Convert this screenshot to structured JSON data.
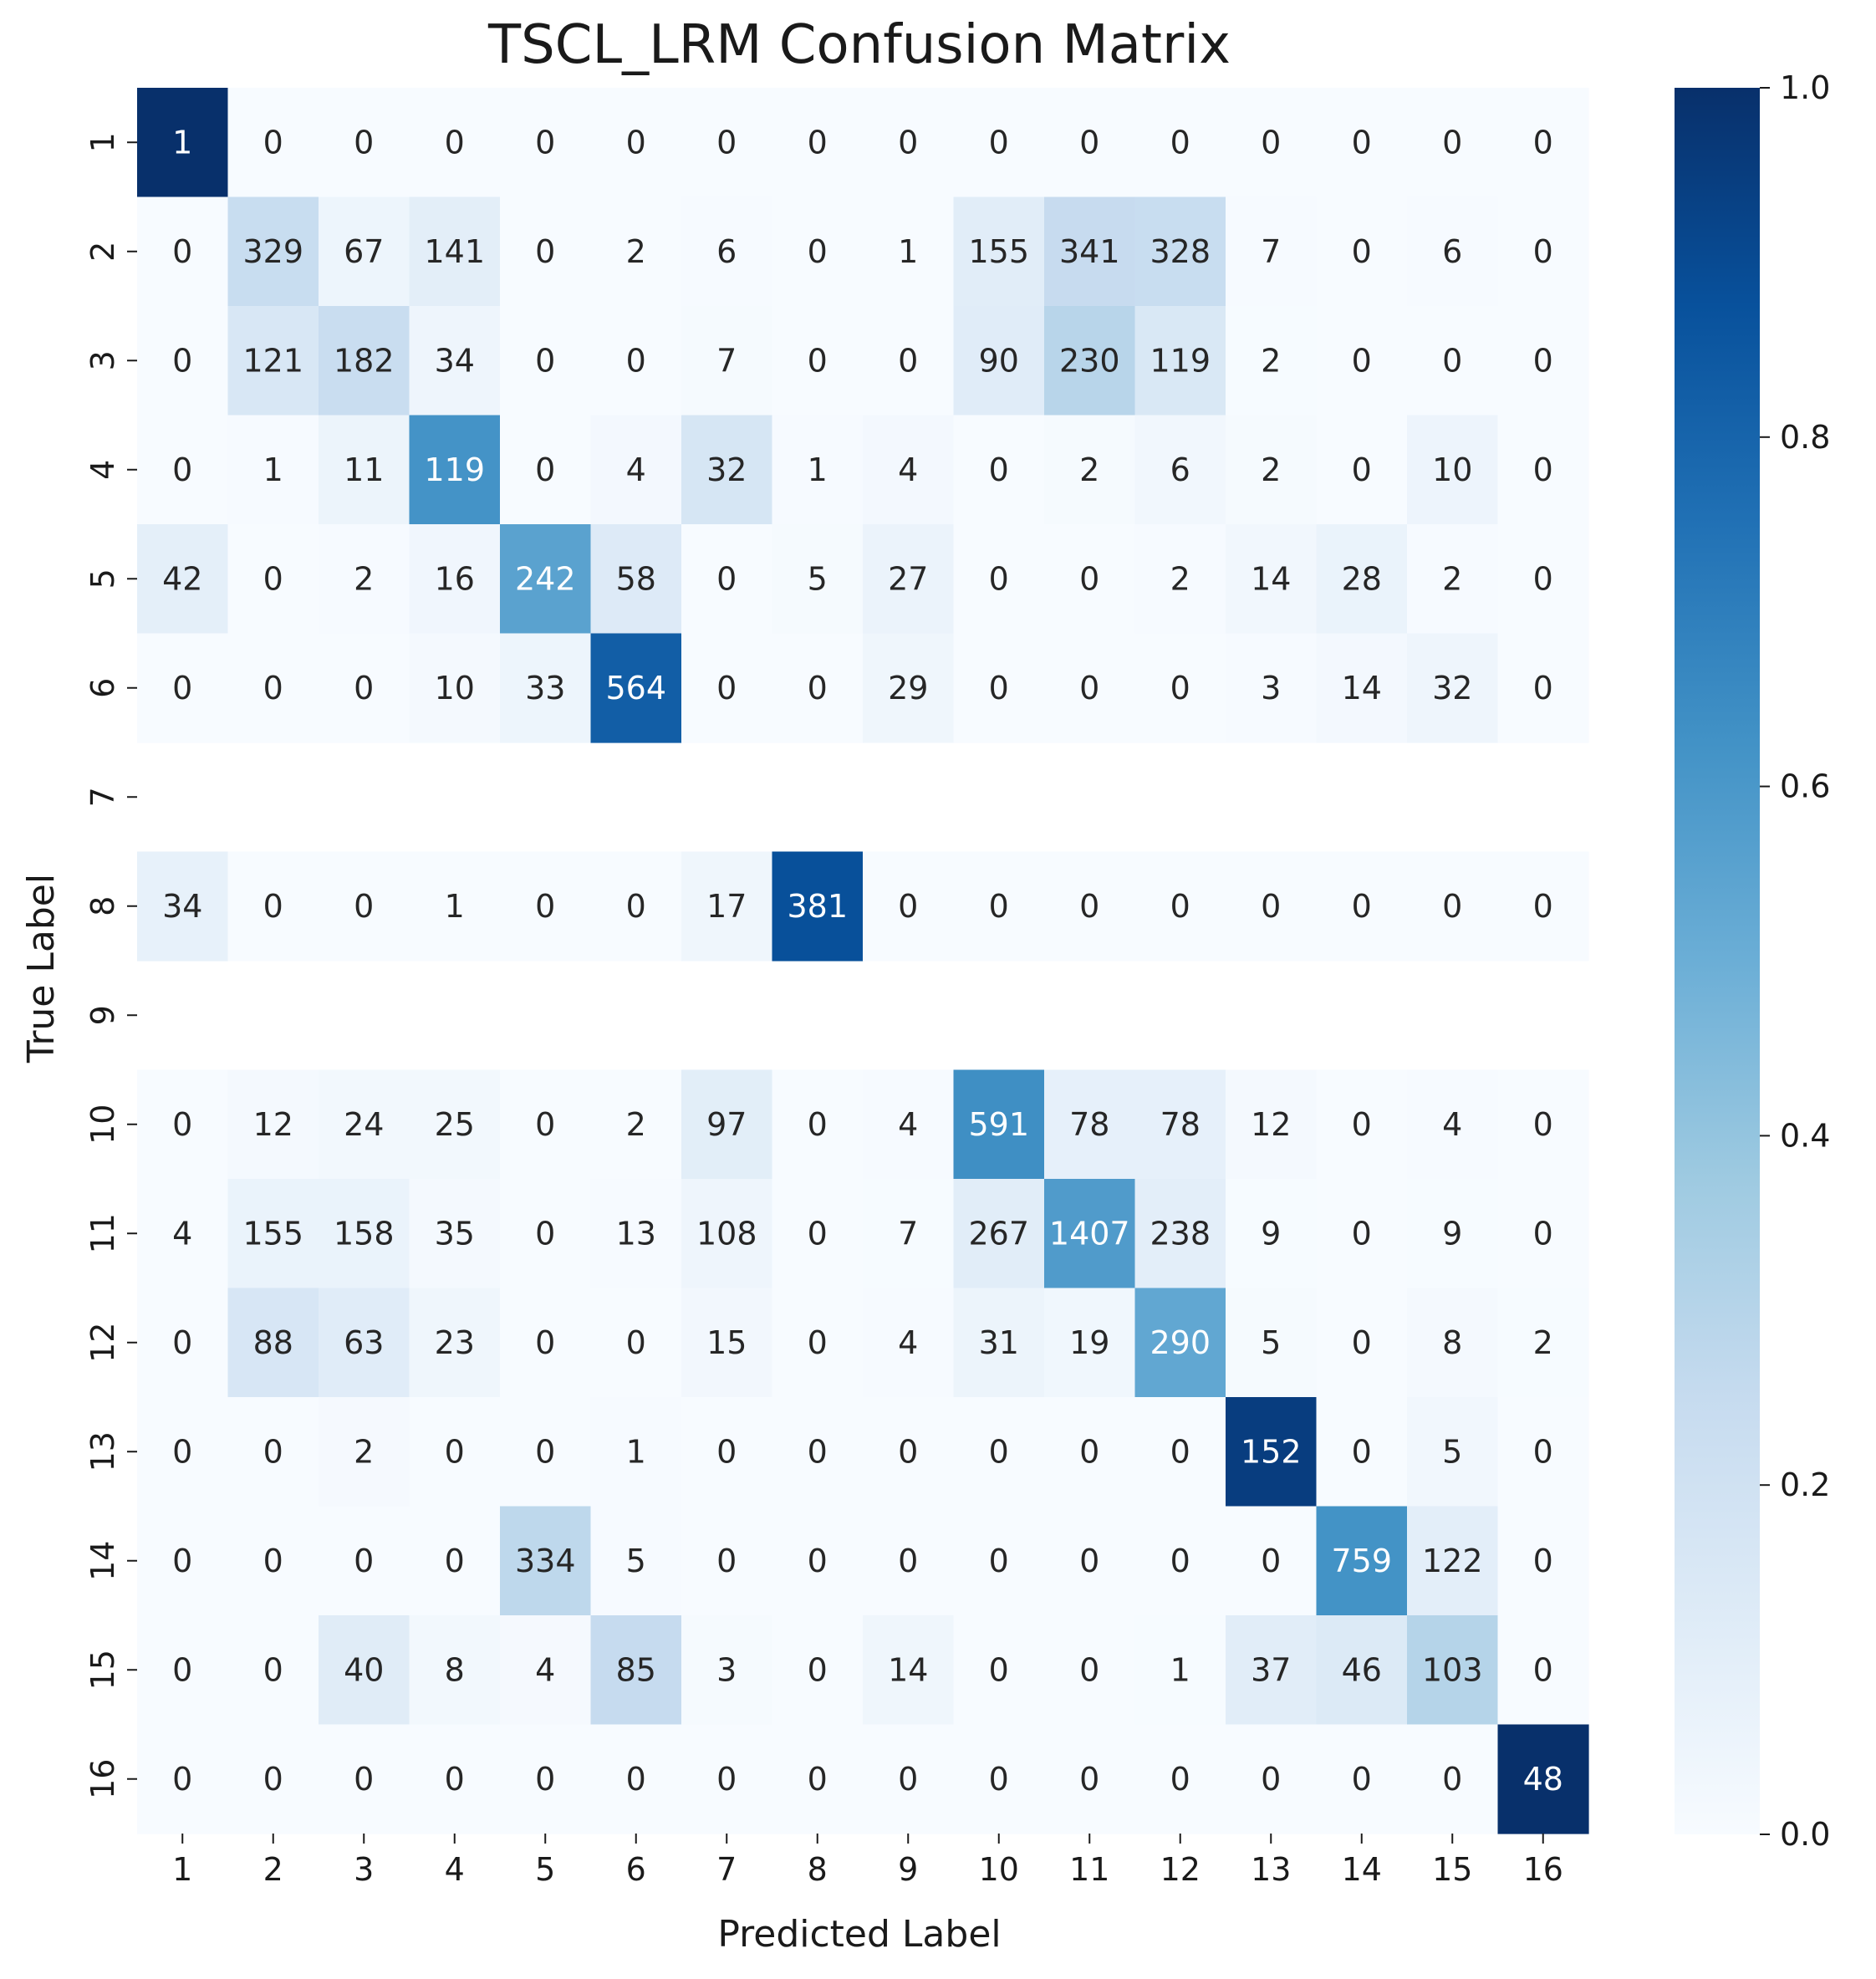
{
  "chart_data": {
    "type": "heatmap",
    "title": "TSCL_LRM Confusion Matrix",
    "xlabel": "Predicted Label",
    "ylabel": "True Label",
    "x_categories": [
      "1",
      "2",
      "3",
      "4",
      "5",
      "6",
      "7",
      "8",
      "9",
      "10",
      "11",
      "12",
      "13",
      "14",
      "15",
      "16"
    ],
    "y_categories": [
      "1",
      "2",
      "3",
      "4",
      "5",
      "6",
      "7",
      "8",
      "9",
      "10",
      "11",
      "12",
      "13",
      "14",
      "15",
      "16"
    ],
    "values": [
      [
        1,
        0,
        0,
        0,
        0,
        0,
        0,
        0,
        0,
        0,
        0,
        0,
        0,
        0,
        0,
        0
      ],
      [
        0,
        329,
        67,
        141,
        0,
        2,
        6,
        0,
        1,
        155,
        341,
        328,
        7,
        0,
        6,
        0
      ],
      [
        0,
        121,
        182,
        34,
        0,
        0,
        7,
        0,
        0,
        90,
        230,
        119,
        2,
        0,
        0,
        0
      ],
      [
        0,
        1,
        11,
        119,
        0,
        4,
        32,
        1,
        4,
        0,
        2,
        6,
        2,
        0,
        10,
        0
      ],
      [
        42,
        0,
        2,
        16,
        242,
        58,
        0,
        5,
        27,
        0,
        0,
        2,
        14,
        28,
        2,
        0
      ],
      [
        0,
        0,
        0,
        10,
        33,
        564,
        0,
        0,
        29,
        0,
        0,
        0,
        3,
        14,
        32,
        0
      ],
      null,
      [
        34,
        0,
        0,
        1,
        0,
        0,
        17,
        381,
        0,
        0,
        0,
        0,
        0,
        0,
        0,
        0
      ],
      null,
      [
        0,
        12,
        24,
        25,
        0,
        2,
        97,
        0,
        4,
        591,
        78,
        78,
        12,
        0,
        4,
        0
      ],
      [
        4,
        155,
        158,
        35,
        0,
        13,
        108,
        0,
        7,
        267,
        1407,
        238,
        9,
        0,
        9,
        0
      ],
      [
        0,
        88,
        63,
        23,
        0,
        0,
        15,
        0,
        4,
        31,
        19,
        290,
        5,
        0,
        8,
        2
      ],
      [
        0,
        0,
        2,
        0,
        0,
        1,
        0,
        0,
        0,
        0,
        0,
        0,
        152,
        0,
        5,
        0
      ],
      [
        0,
        0,
        0,
        0,
        334,
        5,
        0,
        0,
        0,
        0,
        0,
        0,
        0,
        759,
        122,
        0
      ],
      [
        0,
        0,
        40,
        8,
        4,
        85,
        3,
        0,
        14,
        0,
        0,
        1,
        37,
        46,
        103,
        0
      ],
      [
        0,
        0,
        0,
        0,
        0,
        0,
        0,
        0,
        0,
        0,
        0,
        0,
        0,
        0,
        0,
        48
      ]
    ],
    "color_normalization": "row",
    "colormap": "Blues",
    "colorbar": {
      "range": [
        0.0,
        1.0
      ],
      "ticks": [
        "0.0",
        "0.2",
        "0.4",
        "0.6",
        "0.8",
        "1.0"
      ]
    },
    "colors": {
      "low": "#f7fbff",
      "high": "#08306b",
      "text_dark": "#262626",
      "text_light": "#ffffff"
    }
  }
}
